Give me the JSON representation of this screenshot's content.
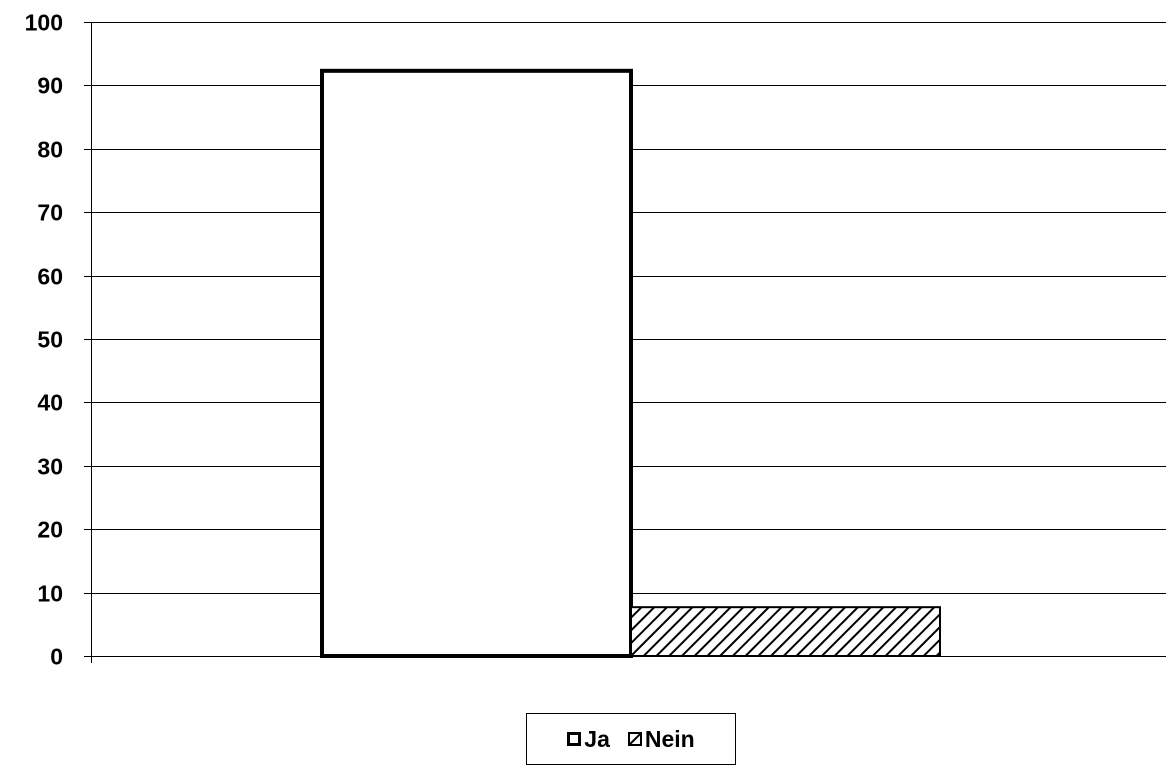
{
  "chart_data": {
    "type": "bar",
    "categories": [
      ""
    ],
    "series": [
      {
        "name": "Ja",
        "values": [
          92.3
        ],
        "fill": "#ffffff",
        "pattern": "none"
      },
      {
        "name": "Nein",
        "values": [
          7.7
        ],
        "fill": "#ffffff",
        "pattern": "diagonal-hatch"
      }
    ],
    "title": "",
    "xlabel": "",
    "ylabel": "",
    "ylim": [
      0,
      100
    ],
    "yticks": [
      "0",
      "10",
      "20",
      "30",
      "40",
      "50",
      "60",
      "70",
      "80",
      "90",
      "100"
    ],
    "grid": true,
    "legend_position": "bottom",
    "colors": {
      "stroke": "#000000",
      "background": "#ffffff",
      "grid": "#000000"
    }
  }
}
